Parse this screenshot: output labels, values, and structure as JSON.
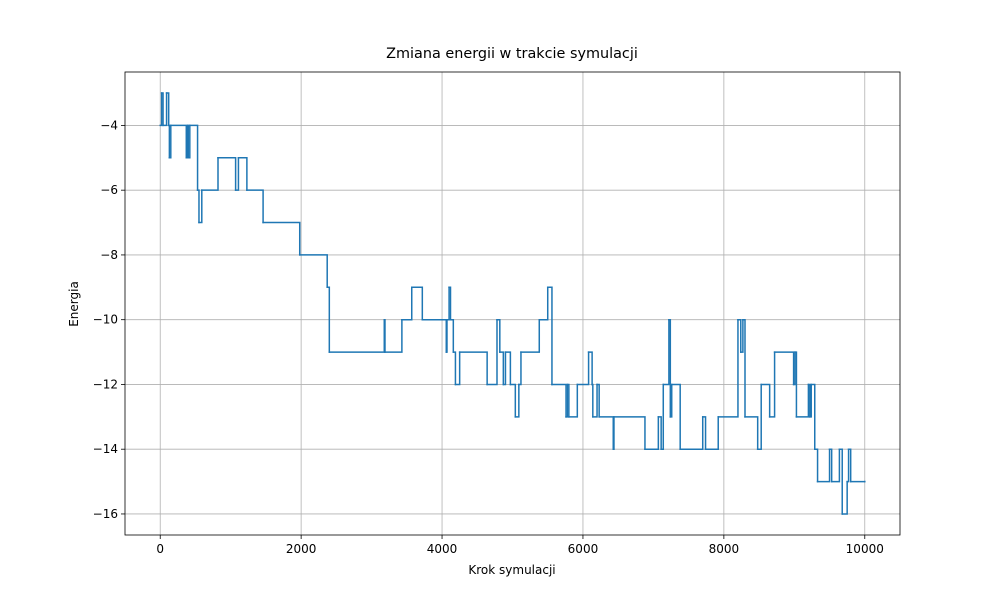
{
  "chart_data": {
    "type": "step",
    "title": "Zmiana energii w trakcie symulacji",
    "x_label": "Krok symulacji",
    "y_label": "Energia",
    "x": [
      0,
      20,
      40,
      90,
      120,
      130,
      150,
      370,
      390,
      400,
      420,
      530,
      550,
      590,
      820,
      1070,
      1110,
      1230,
      1460,
      1980,
      2370,
      2400,
      3180,
      3190,
      3430,
      3570,
      3720,
      4060,
      4070,
      4100,
      4120,
      4160,
      4190,
      4250,
      4640,
      4780,
      4820,
      4870,
      4900,
      4970,
      5040,
      5090,
      5120,
      5380,
      5500,
      5560,
      5760,
      5780,
      5800,
      5920,
      6080,
      6130,
      6140,
      6200,
      6230,
      6430,
      6440,
      6880,
      7070,
      7110,
      7140,
      7220,
      7240,
      7260,
      7380,
      7700,
      7740,
      7920,
      8200,
      8240,
      8270,
      8300,
      8480,
      8530,
      8650,
      8720,
      8990,
      9010,
      9030,
      9200,
      9220,
      9240,
      9290,
      9330,
      9500,
      9530,
      9640,
      9680,
      9750,
      9770,
      9800,
      10000
    ],
    "series": [
      {
        "color": "#1f77b4",
        "values": [
          -4,
          -3,
          -4,
          -3,
          -4,
          -5,
          -4,
          -5,
          -4,
          -5,
          -4,
          -6,
          -7,
          -6,
          -5,
          -6,
          -5,
          -6,
          -7,
          -8,
          -9,
          -11,
          -10,
          -11,
          -10,
          -9,
          -10,
          -11,
          -10,
          -9,
          -10,
          -11,
          -12,
          -11,
          -12,
          -10,
          -11,
          -12,
          -11,
          -12,
          -13,
          -12,
          -11,
          -10,
          -9,
          -12,
          -13,
          -12,
          -13,
          -12,
          -11,
          -12,
          -13,
          -12,
          -13,
          -14,
          -13,
          -14,
          -13,
          -14,
          -12,
          -10,
          -13,
          -12,
          -14,
          -13,
          -14,
          -13,
          -10,
          -11,
          -10,
          -13,
          -14,
          -12,
          -13,
          -11,
          -12,
          -11,
          -13,
          -12,
          -13,
          -12,
          -14,
          -15,
          -14,
          -15,
          -14,
          -16,
          -15,
          -14,
          -15,
          -15
        ]
      }
    ],
    "xlim": [
      -500,
      10500
    ],
    "ylim": [
      -16.65,
      -2.35
    ],
    "xticks": [
      0,
      2000,
      4000,
      6000,
      8000,
      10000
    ],
    "yticks": [
      {
        "value": -16,
        "label": "−16"
      },
      {
        "value": -14,
        "label": "−14"
      },
      {
        "value": -12,
        "label": "−12"
      },
      {
        "value": -10,
        "label": "−10"
      },
      {
        "value": -8,
        "label": "−8"
      },
      {
        "value": -6,
        "label": "−6"
      },
      {
        "value": -4,
        "label": "−4"
      }
    ],
    "grid": true
  }
}
